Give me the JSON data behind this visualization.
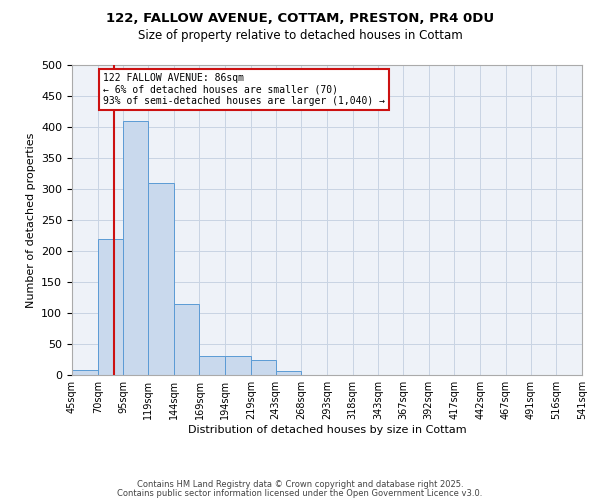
{
  "title_line1": "122, FALLOW AVENUE, COTTAM, PRESTON, PR4 0DU",
  "title_line2": "Size of property relative to detached houses in Cottam",
  "xlabel": "Distribution of detached houses by size in Cottam",
  "ylabel": "Number of detached properties",
  "bar_edges": [
    45,
    70,
    95,
    119,
    144,
    169,
    194,
    219,
    243,
    268,
    293,
    318,
    343,
    367,
    392,
    417,
    442,
    467,
    491,
    516,
    541
  ],
  "bar_heights": [
    8,
    220,
    410,
    310,
    115,
    30,
    30,
    25,
    6,
    0,
    0,
    0,
    0,
    0,
    0,
    0,
    0,
    0,
    0,
    0
  ],
  "bar_color": "#c9d9ed",
  "bar_edgecolor": "#5b9bd5",
  "grid_color": "#c8d4e3",
  "bg_color": "#eef2f8",
  "vline_x": 86,
  "vline_color": "#cc1111",
  "annotation_text": "122 FALLOW AVENUE: 86sqm\n← 6% of detached houses are smaller (70)\n93% of semi-detached houses are larger (1,040) →",
  "annotation_box_edgecolor": "#cc1111",
  "ylim": [
    0,
    500
  ],
  "yticks": [
    0,
    50,
    100,
    150,
    200,
    250,
    300,
    350,
    400,
    450,
    500
  ],
  "tick_labels": [
    "45sqm",
    "70sqm",
    "95sqm",
    "119sqm",
    "144sqm",
    "169sqm",
    "194sqm",
    "219sqm",
    "243sqm",
    "268sqm",
    "293sqm",
    "318sqm",
    "343sqm",
    "367sqm",
    "392sqm",
    "417sqm",
    "442sqm",
    "467sqm",
    "491sqm",
    "516sqm",
    "541sqm"
  ],
  "footer1": "Contains HM Land Registry data © Crown copyright and database right 2025.",
  "footer2": "Contains public sector information licensed under the Open Government Licence v3.0."
}
